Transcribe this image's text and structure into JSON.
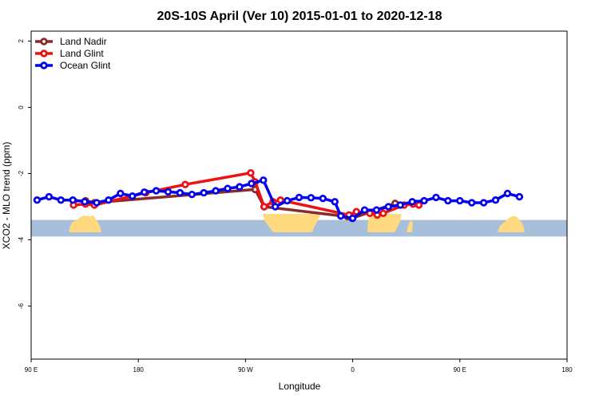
{
  "chart_data": {
    "type": "line",
    "title": "20S-10S April (Ver 10)   2015-01-01 to 2020-12-18",
    "xlabel": "Longitude",
    "ylabel": "XCO2 - MLO trend (ppm)",
    "xlim": [
      90,
      450
    ],
    "ylim": [
      -7.6,
      2.3
    ],
    "x_ticks": [
      {
        "value": 90,
        "label": "90 E"
      },
      {
        "value": 162,
        "label": "180"
      },
      {
        "value": 234,
        "label": "90 W"
      },
      {
        "value": 306,
        "label": "0"
      },
      {
        "value": 378,
        "label": "90 E"
      },
      {
        "value": 450,
        "label": "180"
      }
    ],
    "y_ticks": [
      {
        "value": 2,
        "label": "2"
      },
      {
        "value": 0,
        "label": "0"
      },
      {
        "value": -2,
        "label": "-2"
      },
      {
        "value": -4,
        "label": "-4"
      },
      {
        "value": -6,
        "label": "-6"
      }
    ],
    "legend_position": "top-left",
    "grid": false,
    "land_band": {
      "y_top": -3.4,
      "y_bottom": -3.9,
      "ocean_color": "#a8bfdc",
      "land_color": "#ffd980"
    },
    "series": [
      {
        "name": "Land Nadir",
        "color": "#8b2a2a",
        "points": [
          [
            118.5,
            -2.82
          ],
          [
            126.5,
            -2.82
          ],
          [
            132.5,
            -2.88
          ],
          [
            240.5,
            -2.48
          ],
          [
            246.5,
            -3.0
          ],
          [
            302.5,
            -3.3
          ],
          [
            305.5,
            -3.35
          ],
          [
            334.5,
            -2.9
          ],
          [
            348.5,
            -2.9
          ]
        ]
      },
      {
        "name": "Land Glint",
        "color": "#ee1111",
        "points": [
          [
            118.5,
            -2.95
          ],
          [
            126.5,
            -2.92
          ],
          [
            132.5,
            -2.95
          ],
          [
            167,
            -2.58
          ],
          [
            193.5,
            -2.33
          ],
          [
            237.5,
            -1.98
          ],
          [
            240.5,
            -2.25
          ],
          [
            246.5,
            -3.0
          ],
          [
            252.5,
            -2.85
          ],
          [
            257.5,
            -2.8
          ],
          [
            303.5,
            -3.25
          ],
          [
            308.5,
            -3.15
          ],
          [
            317.5,
            -3.2
          ],
          [
            322.5,
            -3.25
          ],
          [
            326.5,
            -3.2
          ],
          [
            340.5,
            -2.95
          ],
          [
            346.5,
            -2.92
          ],
          [
            350.5,
            -2.95
          ]
        ]
      },
      {
        "name": "Ocean Glint",
        "color": "#0000ee",
        "points": [
          [
            94,
            -2.8
          ],
          [
            102,
            -2.7
          ],
          [
            110,
            -2.8
          ],
          [
            118,
            -2.8
          ],
          [
            126,
            -2.85
          ],
          [
            134,
            -2.88
          ],
          [
            142,
            -2.8
          ],
          [
            150,
            -2.6
          ],
          [
            158,
            -2.68
          ],
          [
            166,
            -2.56
          ],
          [
            174,
            -2.52
          ],
          [
            182,
            -2.55
          ],
          [
            190,
            -2.58
          ],
          [
            198,
            -2.63
          ],
          [
            206,
            -2.58
          ],
          [
            214,
            -2.52
          ],
          [
            222,
            -2.45
          ],
          [
            230,
            -2.4
          ],
          [
            238,
            -2.3
          ],
          [
            246,
            -2.2
          ],
          [
            254,
            -3.0
          ],
          [
            262,
            -2.82
          ],
          [
            270,
            -2.72
          ],
          [
            278,
            -2.73
          ],
          [
            286,
            -2.75
          ],
          [
            294,
            -2.85
          ],
          [
            298,
            -3.28
          ],
          [
            306,
            -3.35
          ],
          [
            314,
            -3.1
          ],
          [
            322,
            -3.1
          ],
          [
            330,
            -3.0
          ],
          [
            338,
            -2.95
          ],
          [
            346,
            -2.85
          ],
          [
            354,
            -2.82
          ],
          [
            362,
            -2.72
          ],
          [
            370,
            -2.82
          ],
          [
            378,
            -2.82
          ],
          [
            386,
            -2.88
          ],
          [
            394,
            -2.88
          ],
          [
            402,
            -2.8
          ],
          [
            410,
            -2.6
          ],
          [
            418,
            -2.7
          ]
        ]
      }
    ]
  }
}
